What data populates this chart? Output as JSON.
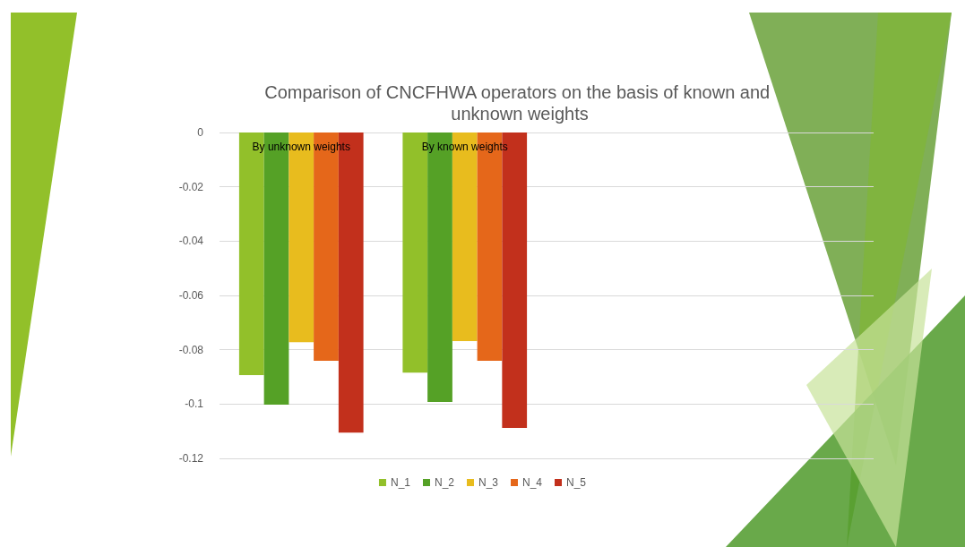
{
  "chart_data": {
    "type": "bar",
    "title": "Comparison of CNCFHWA operators on the basis of known and unknown weights",
    "categories": [
      "By unknown weights",
      "By known weights",
      null,
      null
    ],
    "series": [
      {
        "name": "N_1",
        "color": "#92c02a",
        "values": [
          -0.0893,
          -0.0884,
          null,
          null
        ]
      },
      {
        "name": "N_2",
        "color": "#55a126",
        "values": [
          -0.1002,
          -0.0992,
          null,
          null
        ]
      },
      {
        "name": "N_3",
        "color": "#e8bc1e",
        "values": [
          -0.0772,
          -0.0768,
          null,
          null
        ]
      },
      {
        "name": "N_4",
        "color": "#e5671a",
        "values": [
          -0.0841,
          -0.0841,
          null,
          null
        ]
      },
      {
        "name": "N_5",
        "color": "#c2301c",
        "values": [
          -0.1105,
          -0.1088,
          null,
          null
        ]
      }
    ],
    "ylim": [
      -0.12,
      0
    ],
    "yticks": [
      -0.12,
      -0.1,
      -0.08,
      -0.06,
      -0.04,
      -0.02,
      0
    ],
    "grid": "y",
    "legend": "bottom"
  }
}
